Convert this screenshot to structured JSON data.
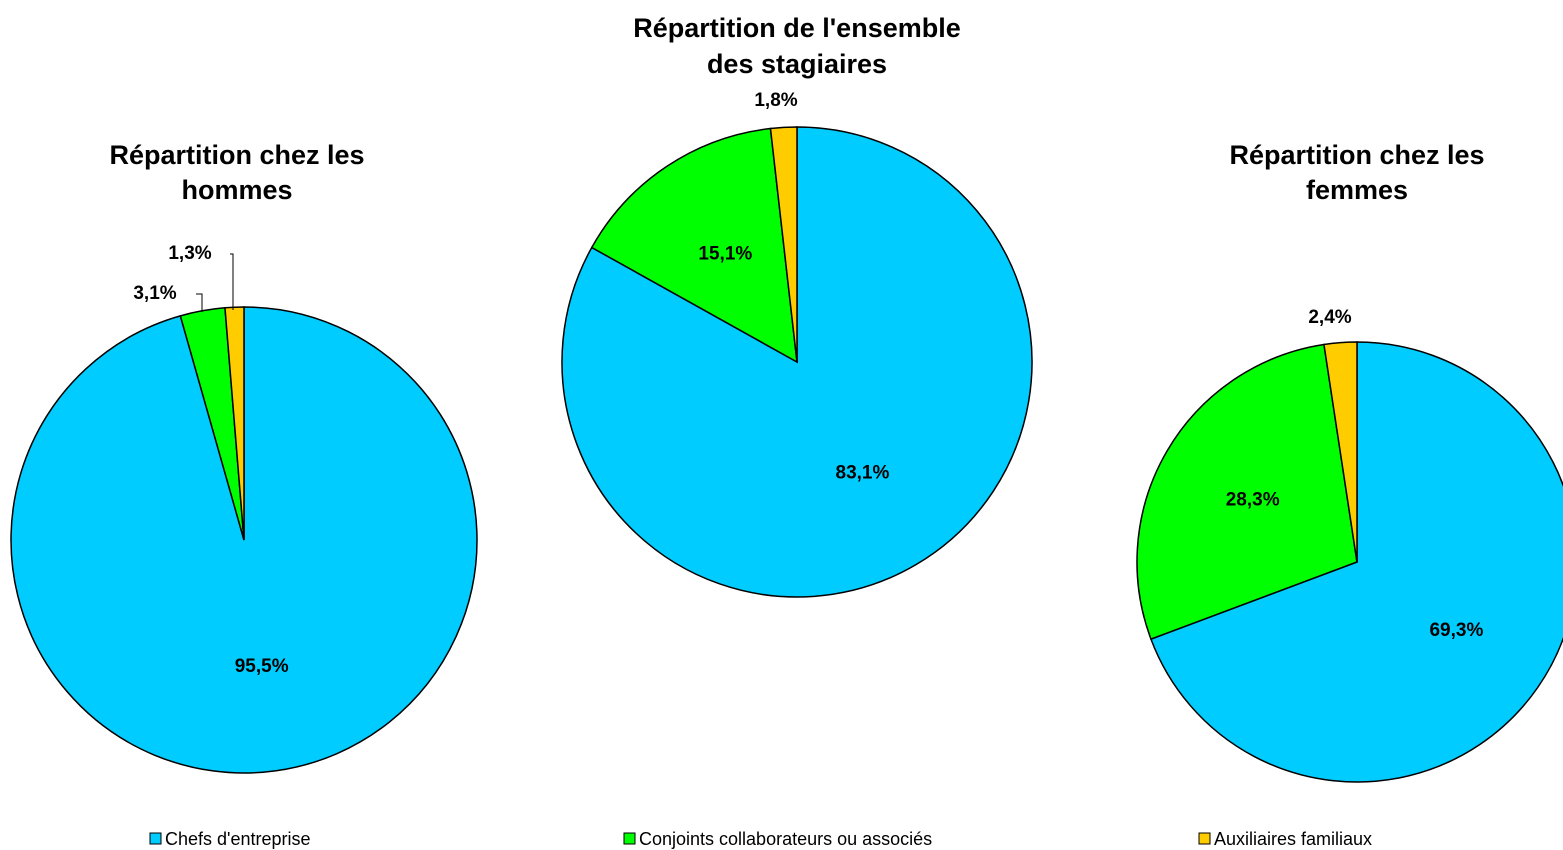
{
  "chart_data": [
    {
      "type": "pie",
      "title": [
        "Répartition chez les",
        "hommes"
      ],
      "categories": [
        "Chefs d'entreprise",
        "Conjoints collaborateurs ou associés",
        "Auxiliaires familiaux"
      ],
      "values": [
        95.5,
        3.1,
        1.3
      ],
      "value_labels": [
        "95,5%",
        "3,1%",
        "1,3%"
      ],
      "colors": [
        "#00CCFF",
        "#00FF00",
        "#FFCC00"
      ]
    },
    {
      "type": "pie",
      "title": [
        "Répartition de l'ensemble",
        "des stagiaires"
      ],
      "categories": [
        "Chefs d'entreprise",
        "Conjoints collaborateurs ou associés",
        "Auxiliaires familiaux"
      ],
      "values": [
        83.1,
        15.1,
        1.8
      ],
      "value_labels": [
        "83,1%",
        "15,1%",
        "1,8%"
      ],
      "colors": [
        "#00CCFF",
        "#00FF00",
        "#FFCC00"
      ]
    },
    {
      "type": "pie",
      "title": [
        "Répartition chez les",
        "femmes"
      ],
      "categories": [
        "Chefs d'entreprise",
        "Conjoints collaborateurs ou associés",
        "Auxiliaires familiaux"
      ],
      "values": [
        69.3,
        28.3,
        2.4
      ],
      "value_labels": [
        "69,3%",
        "28,3%",
        "2,4%"
      ],
      "colors": [
        "#00CCFF",
        "#00FF00",
        "#FFCC00"
      ]
    }
  ]
}
